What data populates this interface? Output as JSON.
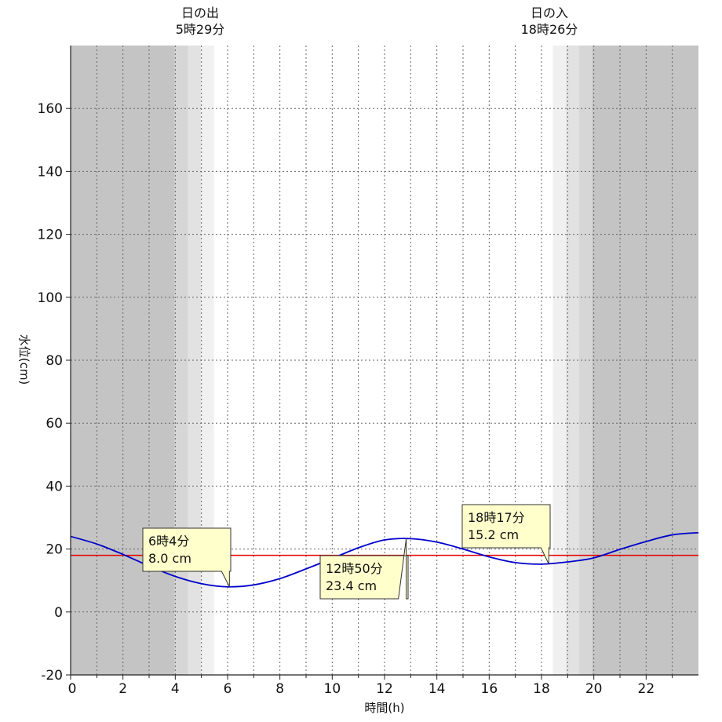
{
  "chart_data": {
    "type": "line",
    "xlabel": "時間(h)",
    "ylabel": "水位(cm)",
    "xlim": [
      0,
      24
    ],
    "ylim": [
      -20,
      180
    ],
    "xticks": [
      0,
      2,
      4,
      6,
      8,
      10,
      12,
      14,
      16,
      18,
      20,
      22
    ],
    "yticks": [
      -20,
      0,
      20,
      40,
      60,
      80,
      100,
      120,
      140,
      160
    ],
    "grid": true,
    "reference_line": {
      "y": 18,
      "color": "#e60000"
    },
    "series": [
      {
        "color": "#0000cc",
        "x": [
          0,
          1,
          2,
          3,
          4,
          5,
          6,
          7,
          8,
          9,
          10,
          11,
          12,
          13,
          14,
          15,
          16,
          17,
          18,
          19,
          20,
          21,
          22,
          23,
          24
        ],
        "y": [
          24.0,
          21.6,
          18.3,
          14.6,
          11.3,
          9.0,
          8.0,
          8.6,
          10.6,
          13.7,
          17.0,
          20.4,
          22.9,
          23.3,
          22.2,
          20.0,
          17.5,
          15.7,
          15.2,
          15.9,
          17.2,
          19.9,
          22.4,
          24.5,
          25.2
        ]
      }
    ],
    "sunrise": {
      "title": "日の出",
      "time": "5時29分",
      "hour": 5.483
    },
    "sunset": {
      "title": "日の入",
      "time": "18時26分",
      "hour": 18.433
    },
    "callouts": [
      {
        "time": "6時4分",
        "level": "8.0 cm",
        "x": 6.07,
        "y": 8.0
      },
      {
        "time": "12時50分",
        "level": "23.4 cm",
        "x": 12.83,
        "y": 23.4
      },
      {
        "time": "18時17分",
        "level": "15.2 cm",
        "x": 18.28,
        "y": 15.2
      }
    ],
    "colors": {
      "night": "#c4c4c4",
      "twilight_1": "#d6d6d6",
      "twilight_2": "#e2e2e2",
      "twilight_3": "#f0f0f0",
      "day": "#ffffff",
      "callout_fill": "#ffffcc"
    }
  }
}
